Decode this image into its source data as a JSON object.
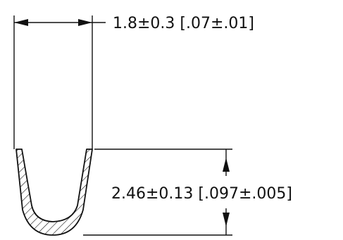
{
  "drawing": {
    "width_dimension": "1.8±0.3 [.07±.01]",
    "height_dimension": "2.46±0.13 [.097±.005]"
  },
  "colors": {
    "line": "#111111",
    "background": "#ffffff"
  }
}
